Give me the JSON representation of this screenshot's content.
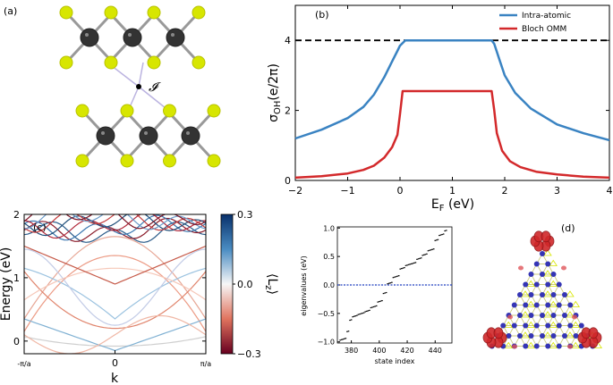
{
  "panel_labels": {
    "a": "(a)",
    "b": "(b)",
    "c": "(c)",
    "d": "(d)"
  },
  "inversion_symbol": "𝓘",
  "chart_data": [
    {
      "id": "b",
      "type": "line",
      "xlabel": "E_F (eV)",
      "ylabel": "σ_OH (e/2π)",
      "xlim": [
        -2,
        4
      ],
      "ylim": [
        0,
        5
      ],
      "xticks": [
        -2,
        -1,
        0,
        1,
        2,
        3,
        4
      ],
      "yticks": [
        0,
        2,
        4
      ],
      "reference_line": {
        "y": 4,
        "style": "dashed",
        "color": "#000000"
      },
      "series": [
        {
          "name": "Intra-atomic",
          "color": "#3a83c2",
          "x": [
            -2,
            -1.5,
            -1,
            -0.7,
            -0.5,
            -0.3,
            -0.15,
            -0.05,
            0,
            0.1,
            1.75,
            1.8,
            1.9,
            2.0,
            2.2,
            2.5,
            3.0,
            3.5,
            4.0
          ],
          "y": [
            1.2,
            1.45,
            1.78,
            2.1,
            2.45,
            2.95,
            3.4,
            3.7,
            3.85,
            4.0,
            4.0,
            3.9,
            3.45,
            3.0,
            2.5,
            2.05,
            1.6,
            1.35,
            1.15
          ]
        },
        {
          "name": "Bloch OMM",
          "color": "#d3292b",
          "x": [
            -2,
            -1.5,
            -1,
            -0.7,
            -0.5,
            -0.3,
            -0.15,
            -0.05,
            0,
            0.05,
            1.75,
            1.8,
            1.85,
            1.95,
            2.1,
            2.3,
            2.6,
            3.0,
            3.5,
            4.0
          ],
          "y": [
            0.08,
            0.12,
            0.2,
            0.3,
            0.42,
            0.65,
            0.95,
            1.3,
            1.9,
            2.55,
            2.55,
            2.0,
            1.35,
            0.85,
            0.55,
            0.38,
            0.25,
            0.17,
            0.11,
            0.08
          ]
        }
      ]
    },
    {
      "id": "c",
      "type": "line",
      "xlabel": "k",
      "ylabel": "Energy (eV)",
      "ylim": [
        -0.2,
        2
      ],
      "yticks": [
        0,
        1,
        2
      ],
      "xtick_labels": [
        "-π/a",
        "0",
        "π/a"
      ],
      "colorbar": {
        "label": "⟨L_z⟩",
        "min": -0.3,
        "max": 0.3,
        "ticks": [
          "0.3",
          "0.0",
          "-0.3"
        ]
      }
    },
    {
      "id": "inset",
      "type": "scatter",
      "xlabel": "state index",
      "ylabel": "eigenvalues (eV)",
      "xlim": [
        370,
        452
      ],
      "ylim": [
        -1.02,
        1.02
      ],
      "xticks": [
        380,
        400,
        420,
        440
      ],
      "yticks": [
        -1.0,
        -0.5,
        0.0,
        0.5,
        1.0
      ],
      "fermi_level": 0.0,
      "points_desc": "staircase of eigenvalues from -1 to 1"
    }
  ]
}
